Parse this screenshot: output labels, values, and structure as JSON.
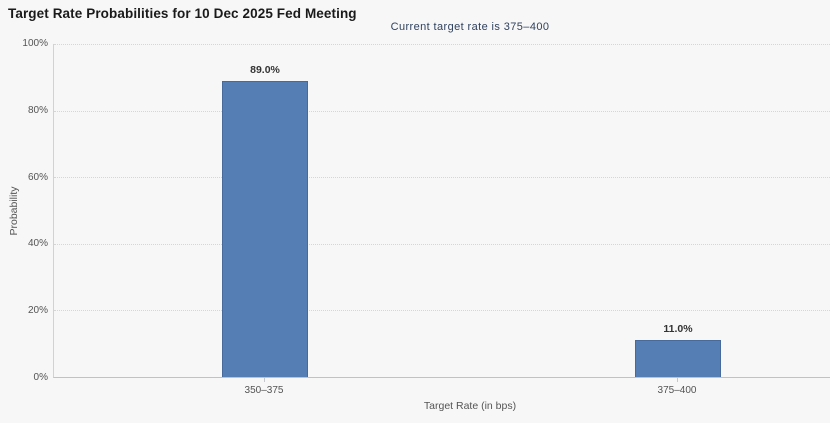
{
  "chart": {
    "title": "Target Rate Probabilities for 10 Dec 2025 Fed Meeting",
    "subtitle": "Current target rate is 375–400",
    "y_axis": {
      "label": "Probability",
      "ticks": [
        "100%",
        "80%",
        "60%",
        "40%",
        "20%",
        "0%"
      ]
    },
    "x_axis": {
      "label": "Target Rate (in bps)"
    },
    "bars": [
      {
        "category": "350–375",
        "value": 89.0,
        "label": "89.0%"
      },
      {
        "category": "375–400",
        "value": 11.0,
        "label": "11.0%"
      }
    ],
    "colors": {
      "bar_fill": "#547eb4",
      "bar_border": "#47699c",
      "subtitle_text": "#30425f",
      "background": "#f7f7f7"
    }
  },
  "chart_data": {
    "type": "bar",
    "title": "Target Rate Probabilities for 10 Dec 2025 Fed Meeting",
    "subtitle": "Current target rate is 375–400",
    "categories": [
      "350–375",
      "375–400"
    ],
    "values": [
      89.0,
      11.0
    ],
    "value_labels": [
      "89.0%",
      "11.0%"
    ],
    "xlabel": "Target Rate (in bps)",
    "ylabel": "Probability",
    "ylim": [
      0,
      100
    ],
    "ytick_values": [
      0,
      20,
      40,
      60,
      80,
      100
    ],
    "ytick_labels": [
      "0%",
      "20%",
      "40%",
      "60%",
      "80%",
      "100%"
    ],
    "grid": "dotted-horizontal",
    "legend": "none",
    "bar_color": "#547eb4"
  }
}
